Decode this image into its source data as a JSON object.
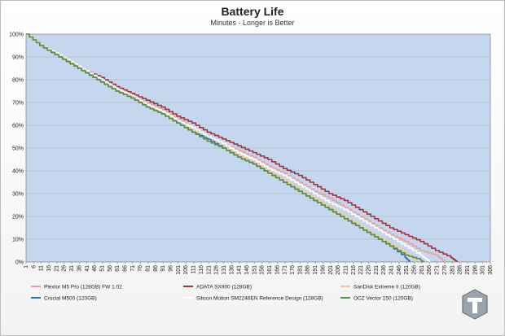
{
  "chart_data": {
    "type": "line",
    "title": "Battery Life",
    "subtitle": "Minutes - Longer is Better",
    "xlabel": "",
    "ylabel": "",
    "xlim": [
      1,
      306
    ],
    "ylim": [
      0,
      100
    ],
    "y_ticks": [
      "0%",
      "10%",
      "20%",
      "30%",
      "40%",
      "50%",
      "60%",
      "70%",
      "80%",
      "90%",
      "100%"
    ],
    "x_ticks": [
      "1",
      "6",
      "11",
      "16",
      "21",
      "26",
      "31",
      "36",
      "41",
      "46",
      "51",
      "56",
      "61",
      "66",
      "71",
      "76",
      "81",
      "86",
      "91",
      "96",
      "101",
      "106",
      "111",
      "116",
      "121",
      "126",
      "131",
      "136",
      "141",
      "146",
      "151",
      "156",
      "161",
      "166",
      "171",
      "176",
      "181",
      "186",
      "191",
      "196",
      "201",
      "206",
      "211",
      "216",
      "221",
      "226",
      "231",
      "236",
      "241",
      "246",
      "251",
      "256",
      "261",
      "266",
      "271",
      "276",
      "281",
      "286",
      "291",
      "296",
      "301",
      "306"
    ],
    "grid": true,
    "legend_position": "bottom",
    "series": [
      {
        "name": "Plextor M5 Pro (128GB) FW 1.02",
        "color": "#e8a0a0",
        "points": [
          [
            1,
            100
          ],
          [
            10,
            95
          ],
          [
            20,
            92
          ],
          [
            30,
            88
          ],
          [
            40,
            84
          ],
          [
            50,
            80
          ],
          [
            60,
            76
          ],
          [
            70,
            73
          ],
          [
            80,
            70
          ],
          [
            90,
            67
          ],
          [
            100,
            63
          ],
          [
            110,
            59
          ],
          [
            120,
            55
          ],
          [
            130,
            52
          ],
          [
            140,
            49
          ],
          [
            150,
            46
          ],
          [
            160,
            42
          ],
          [
            170,
            39
          ],
          [
            180,
            35
          ],
          [
            190,
            31
          ],
          [
            200,
            28
          ],
          [
            210,
            24
          ],
          [
            220,
            20
          ],
          [
            230,
            16
          ],
          [
            240,
            12
          ],
          [
            250,
            9
          ],
          [
            260,
            5
          ],
          [
            270,
            3
          ],
          [
            276,
            0
          ]
        ]
      },
      {
        "name": "ADATA SX900 (128GB)",
        "color": "#a0323c",
        "points": [
          [
            1,
            100
          ],
          [
            10,
            95
          ],
          [
            20,
            92
          ],
          [
            30,
            88
          ],
          [
            40,
            84
          ],
          [
            50,
            81
          ],
          [
            60,
            77
          ],
          [
            70,
            74
          ],
          [
            80,
            71
          ],
          [
            90,
            68
          ],
          [
            100,
            64
          ],
          [
            110,
            61
          ],
          [
            120,
            57
          ],
          [
            130,
            54
          ],
          [
            140,
            51
          ],
          [
            150,
            48
          ],
          [
            160,
            45
          ],
          [
            170,
            41
          ],
          [
            180,
            38
          ],
          [
            190,
            34
          ],
          [
            200,
            30
          ],
          [
            210,
            27
          ],
          [
            220,
            23
          ],
          [
            230,
            19
          ],
          [
            240,
            15
          ],
          [
            250,
            12
          ],
          [
            260,
            9
          ],
          [
            270,
            5
          ],
          [
            280,
            2
          ],
          [
            284,
            0
          ]
        ]
      },
      {
        "name": "SanDisk Extreme II (120GB)",
        "color": "#f5c89a",
        "points": [
          [
            1,
            100
          ],
          [
            10,
            95
          ],
          [
            20,
            91
          ],
          [
            30,
            87
          ],
          [
            40,
            83
          ],
          [
            50,
            79
          ],
          [
            60,
            75
          ],
          [
            70,
            72
          ],
          [
            80,
            69
          ],
          [
            90,
            65
          ],
          [
            100,
            62
          ],
          [
            110,
            58
          ],
          [
            120,
            54
          ],
          [
            130,
            51
          ],
          [
            140,
            47
          ],
          [
            150,
            44
          ],
          [
            160,
            40
          ],
          [
            170,
            36
          ],
          [
            180,
            32
          ],
          [
            190,
            28
          ],
          [
            200,
            24
          ],
          [
            210,
            20
          ],
          [
            220,
            16
          ],
          [
            230,
            12
          ],
          [
            240,
            8
          ],
          [
            250,
            4
          ],
          [
            257,
            0
          ]
        ]
      },
      {
        "name": "Crucial M500 (120GB)",
        "color": "#2e6fc2",
        "points": [
          [
            1,
            100
          ],
          [
            10,
            95
          ],
          [
            20,
            91
          ],
          [
            30,
            87
          ],
          [
            40,
            83
          ],
          [
            50,
            79
          ],
          [
            60,
            75
          ],
          [
            70,
            72
          ],
          [
            80,
            68
          ],
          [
            90,
            65
          ],
          [
            100,
            61
          ],
          [
            110,
            57
          ],
          [
            120,
            54
          ],
          [
            130,
            50
          ],
          [
            140,
            46
          ],
          [
            150,
            43
          ],
          [
            160,
            39
          ],
          [
            170,
            35
          ],
          [
            180,
            31
          ],
          [
            190,
            27
          ],
          [
            200,
            23
          ],
          [
            210,
            19
          ],
          [
            220,
            15
          ],
          [
            230,
            11
          ],
          [
            240,
            7
          ],
          [
            250,
            2
          ],
          [
            253,
            0
          ]
        ]
      },
      {
        "name": "Silicon Motion SM2246EN Reference Design (128GB)",
        "color": "#ffffff",
        "points": [
          [
            1,
            100
          ],
          [
            10,
            95
          ],
          [
            20,
            92
          ],
          [
            30,
            88
          ],
          [
            40,
            84
          ],
          [
            50,
            80
          ],
          [
            60,
            76
          ],
          [
            70,
            73
          ],
          [
            80,
            69
          ],
          [
            90,
            66
          ],
          [
            100,
            62
          ],
          [
            110,
            59
          ],
          [
            120,
            55
          ],
          [
            130,
            52
          ],
          [
            140,
            48
          ],
          [
            150,
            45
          ],
          [
            160,
            41
          ],
          [
            170,
            38
          ],
          [
            180,
            34
          ],
          [
            190,
            30
          ],
          [
            200,
            26
          ],
          [
            210,
            23
          ],
          [
            220,
            19
          ],
          [
            230,
            15
          ],
          [
            240,
            11
          ],
          [
            250,
            7
          ],
          [
            260,
            3
          ],
          [
            266,
            0
          ]
        ]
      },
      {
        "name": "OCZ Vector 150 (120GB)",
        "color": "#5e8f32",
        "points": [
          [
            1,
            100
          ],
          [
            10,
            95
          ],
          [
            20,
            91
          ],
          [
            30,
            87
          ],
          [
            40,
            83
          ],
          [
            50,
            79
          ],
          [
            60,
            75
          ],
          [
            70,
            72
          ],
          [
            80,
            68
          ],
          [
            90,
            65
          ],
          [
            100,
            61
          ],
          [
            110,
            57
          ],
          [
            120,
            53
          ],
          [
            130,
            50
          ],
          [
            140,
            46
          ],
          [
            150,
            43
          ],
          [
            160,
            39
          ],
          [
            170,
            35
          ],
          [
            180,
            31
          ],
          [
            190,
            27
          ],
          [
            200,
            23
          ],
          [
            210,
            19
          ],
          [
            220,
            15
          ],
          [
            230,
            11
          ],
          [
            240,
            7
          ],
          [
            250,
            3
          ],
          [
            260,
            1
          ],
          [
            262,
            0
          ]
        ]
      }
    ]
  }
}
